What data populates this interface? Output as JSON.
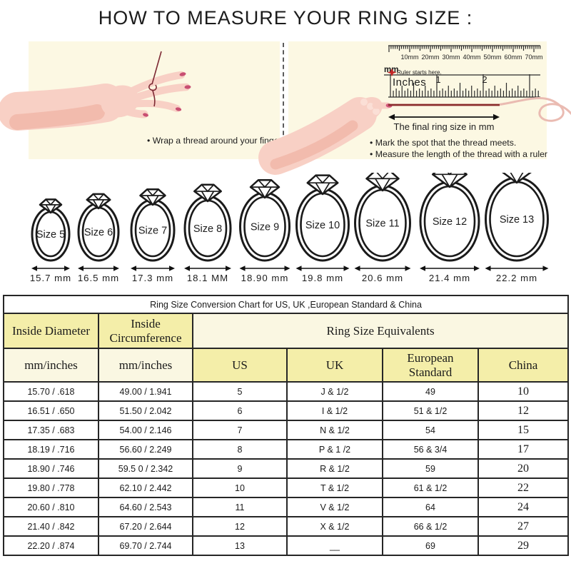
{
  "page_title": "HOW TO MEASURE YOUR RING SIZE :",
  "instructions": {
    "left_panel": {
      "bullet": "Wrap a thread around your finger"
    },
    "right_panel": {
      "ruler": {
        "mm_labels": [
          "10mm",
          "20mm",
          "30mm",
          "40mm",
          "50mm",
          "60mm",
          "70mm"
        ],
        "mm_unit_label": "mm",
        "start_note": "Ruler starts here.",
        "inches_label": "Inches",
        "inch_numbers": [
          "1",
          "2"
        ]
      },
      "arrow_caption": "The final ring size in mm",
      "bullets": [
        "Mark the spot that the thread meets.",
        "Measure the length of the thread with a ruler"
      ]
    }
  },
  "rings": [
    {
      "label": "Size 5",
      "diameter": "15.7 mm"
    },
    {
      "label": "Size 6",
      "diameter": "16.5 mm"
    },
    {
      "label": "Size 7",
      "diameter": "17.3 mm"
    },
    {
      "label": "Size 8",
      "diameter": "18.1 MM"
    },
    {
      "label": "Size 9",
      "diameter": "18.90 mm"
    },
    {
      "label": "Size 10",
      "diameter": "19.8 mm"
    },
    {
      "label": "Size 11",
      "diameter": "20.6 mm"
    },
    {
      "label": "Size 12",
      "diameter": "21.4 mm"
    },
    {
      "label": "Size 13",
      "diameter": "22.2 mm"
    }
  ],
  "table": {
    "title": "Ring Size Conversion Chart for US, UK ,European Standard & China",
    "group_headers": {
      "inside_diameter": "Inside Diameter",
      "inside_circumference": "Inside Circumference",
      "equivalents": "Ring Size Equivalents"
    },
    "subheaders": [
      "mm/inches",
      "mm/inches",
      "US",
      "UK",
      "European Standard",
      "China"
    ],
    "rows": [
      [
        "15.70 / .618",
        "49.00 / 1.941",
        "5",
        "J & 1/2",
        "49",
        "10"
      ],
      [
        "16.51 / .650",
        "51.50 / 2.042",
        "6",
        "I & 1/2",
        "51 & 1/2",
        "12"
      ],
      [
        "17.35 / .683",
        "54.00 / 2.146",
        "7",
        "N & 1/2",
        "54",
        "15"
      ],
      [
        "18.19 / .716",
        "56.60 / 2.249",
        "8",
        "P & 1 /2",
        "56 & 3/4",
        "17"
      ],
      [
        "18.90 / .746",
        "59.5 0 / 2.342",
        "9",
        "R & 1/2",
        "59",
        "20"
      ],
      [
        "19.80 / .778",
        "62.10 / 2.442",
        "10",
        "T & 1/2",
        "61 & 1/2",
        "22"
      ],
      [
        "20.60 / .810",
        "64.60 / 2.543",
        "11",
        "V & 1/2",
        "64",
        "24"
      ],
      [
        "21.40 / .842",
        "67.20 / 2.644",
        "12",
        "X & 1/2",
        "66 & 1/2",
        "27"
      ],
      [
        "22.20 / .874",
        "69.70 / 2.744",
        "13",
        "__",
        "69",
        "29"
      ]
    ]
  },
  "colors": {
    "panel_bg": "#FCF8E3",
    "skin": "#F8D0C5",
    "skin_shade": "#F2BBAD",
    "knuckle": "#FBDFD6",
    "nail": "#C84F72",
    "thread_dark": "#8A2B2B",
    "thread_light": "#EABBB2",
    "ruler_ink": "#2a2a2a",
    "start_marker_red": "#C32828",
    "table_yellow": "#F4EEA9",
    "table_cream": "#FAF7E2",
    "ring_ink": "#1a1a1a"
  }
}
